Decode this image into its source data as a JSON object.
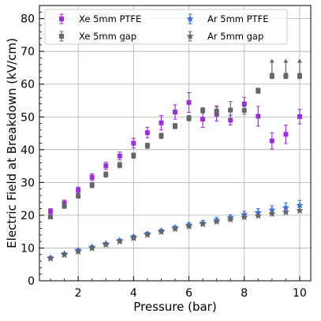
{
  "chart_data": {
    "type": "scatter",
    "xlabel": "Pressure (bar)",
    "ylabel": "Electric Field at Breakdown (kV/cm)",
    "xlim": [
      0.6,
      10.4
    ],
    "ylim": [
      0,
      84
    ],
    "x_ticks": [
      2,
      4,
      6,
      8,
      10
    ],
    "y_ticks": [
      0,
      10,
      20,
      30,
      40,
      50,
      60,
      70,
      80
    ],
    "x_minor_step": 0.5,
    "y_minor_step": 2,
    "grid": true,
    "legend_position": "top-left",
    "series": [
      {
        "name": "Xe 5mm PTFE",
        "marker": "square",
        "color": "#9b30d6",
        "points": [
          {
            "x": 1.0,
            "y": 21.2,
            "err": 0.8
          },
          {
            "x": 1.5,
            "y": 23.7,
            "err": 0.9
          },
          {
            "x": 2.0,
            "y": 27.7,
            "err": 0.9
          },
          {
            "x": 2.5,
            "y": 31.6,
            "err": 1.0
          },
          {
            "x": 3.0,
            "y": 35.1,
            "err": 1.1
          },
          {
            "x": 3.5,
            "y": 38.1,
            "err": 1.2
          },
          {
            "x": 4.0,
            "y": 42.0,
            "err": 1.5
          },
          {
            "x": 4.5,
            "y": 45.2,
            "err": 1.6
          },
          {
            "x": 5.0,
            "y": 48.2,
            "err": 2.2
          },
          {
            "x": 5.5,
            "y": 51.5,
            "err": 2.2
          },
          {
            "x": 6.0,
            "y": 54.4,
            "err": 3.0
          },
          {
            "x": 6.5,
            "y": 49.3,
            "err": 2.5
          },
          {
            "x": 7.0,
            "y": 50.9,
            "err": 2.2
          },
          {
            "x": 7.5,
            "y": 49.0,
            "err": 1.5
          },
          {
            "x": 8.0,
            "y": 54.0,
            "err": 2.0
          },
          {
            "x": 8.5,
            "y": 50.2,
            "err": 3.0
          },
          {
            "x": 9.0,
            "y": 42.7,
            "err": 2.5
          },
          {
            "x": 9.5,
            "y": 44.7,
            "err": 2.8
          },
          {
            "x": 10.0,
            "y": 50.1,
            "err": 2.2
          }
        ]
      },
      {
        "name": "Xe 5mm gap",
        "marker": "square",
        "color": "#666666",
        "points": [
          {
            "x": 1.0,
            "y": 19.5,
            "err": 0.6
          },
          {
            "x": 1.5,
            "y": 22.8,
            "err": 0.7
          },
          {
            "x": 2.0,
            "y": 25.9,
            "err": 0.7
          },
          {
            "x": 2.5,
            "y": 29.2,
            "err": 0.8
          },
          {
            "x": 3.0,
            "y": 32.4,
            "err": 0.8
          },
          {
            "x": 3.5,
            "y": 35.3,
            "err": 0.8
          },
          {
            "x": 4.0,
            "y": 38.2,
            "err": 0.8
          },
          {
            "x": 4.5,
            "y": 41.2,
            "err": 0.8
          },
          {
            "x": 5.0,
            "y": 44.2,
            "err": 0.8
          },
          {
            "x": 5.5,
            "y": 47.2,
            "err": 0.8
          },
          {
            "x": 6.0,
            "y": 49.6,
            "err": 0.8
          },
          {
            "x": 6.5,
            "y": 52.0,
            "err": 0.8
          },
          {
            "x": 7.0,
            "y": 51.8,
            "err": 1.6
          },
          {
            "x": 7.5,
            "y": 52.1,
            "err": 2.6
          },
          {
            "x": 8.0,
            "y": 52.0,
            "err": 1.2
          },
          {
            "x": 8.5,
            "y": 58.0,
            "err": 0.8
          },
          {
            "x": 9.0,
            "y": 62.5,
            "err": 0.8,
            "lower_limit": true
          },
          {
            "x": 9.5,
            "y": 62.5,
            "err": 0.8,
            "lower_limit": true
          },
          {
            "x": 10.0,
            "y": 62.5,
            "err": 0.8,
            "lower_limit": true
          }
        ]
      },
      {
        "name": "Ar 5mm PTFE",
        "marker": "star",
        "color": "#3b6fd8",
        "points": [
          {
            "x": 1.0,
            "y": 7.0,
            "err": 0.4
          },
          {
            "x": 1.5,
            "y": 8.2,
            "err": 0.4
          },
          {
            "x": 2.0,
            "y": 9.3,
            "err": 0.4
          },
          {
            "x": 2.5,
            "y": 10.3,
            "err": 0.4
          },
          {
            "x": 3.0,
            "y": 11.3,
            "err": 0.4
          },
          {
            "x": 3.5,
            "y": 12.3,
            "err": 0.4
          },
          {
            "x": 4.0,
            "y": 13.4,
            "err": 0.5
          },
          {
            "x": 4.5,
            "y": 14.3,
            "err": 0.5
          },
          {
            "x": 5.0,
            "y": 15.2,
            "err": 0.5
          },
          {
            "x": 5.5,
            "y": 16.2,
            "err": 0.6
          },
          {
            "x": 6.0,
            "y": 17.0,
            "err": 0.7
          },
          {
            "x": 6.5,
            "y": 17.6,
            "err": 0.8
          },
          {
            "x": 7.0,
            "y": 18.5,
            "err": 0.8
          },
          {
            "x": 7.5,
            "y": 19.3,
            "err": 0.8
          },
          {
            "x": 8.0,
            "y": 20.2,
            "err": 1.0
          },
          {
            "x": 8.5,
            "y": 20.8,
            "err": 1.2
          },
          {
            "x": 9.0,
            "y": 21.6,
            "err": 1.3
          },
          {
            "x": 9.5,
            "y": 22.3,
            "err": 1.5
          },
          {
            "x": 10.0,
            "y": 23.0,
            "err": 1.5
          }
        ]
      },
      {
        "name": "Ar 5mm gap",
        "marker": "star",
        "color": "#666666",
        "points": [
          {
            "x": 1.0,
            "y": 6.8,
            "err": 0.3
          },
          {
            "x": 1.5,
            "y": 7.9,
            "err": 0.3
          },
          {
            "x": 2.0,
            "y": 8.9,
            "err": 0.3
          },
          {
            "x": 2.5,
            "y": 9.9,
            "err": 0.3
          },
          {
            "x": 3.0,
            "y": 11.0,
            "err": 0.3
          },
          {
            "x": 3.5,
            "y": 12.0,
            "err": 0.3
          },
          {
            "x": 4.0,
            "y": 13.0,
            "err": 0.3
          },
          {
            "x": 4.5,
            "y": 14.0,
            "err": 0.3
          },
          {
            "x": 5.0,
            "y": 14.9,
            "err": 0.3
          },
          {
            "x": 5.5,
            "y": 15.8,
            "err": 0.3
          },
          {
            "x": 6.0,
            "y": 16.6,
            "err": 0.3
          },
          {
            "x": 6.5,
            "y": 17.3,
            "err": 0.3
          },
          {
            "x": 7.0,
            "y": 18.0,
            "err": 0.3
          },
          {
            "x": 7.5,
            "y": 18.7,
            "err": 0.3
          },
          {
            "x": 8.0,
            "y": 19.4,
            "err": 0.3
          },
          {
            "x": 8.5,
            "y": 19.8,
            "err": 0.4
          },
          {
            "x": 9.0,
            "y": 20.4,
            "err": 0.4
          },
          {
            "x": 9.5,
            "y": 20.9,
            "err": 0.4
          },
          {
            "x": 10.0,
            "y": 21.4,
            "err": 0.4
          }
        ]
      }
    ]
  }
}
